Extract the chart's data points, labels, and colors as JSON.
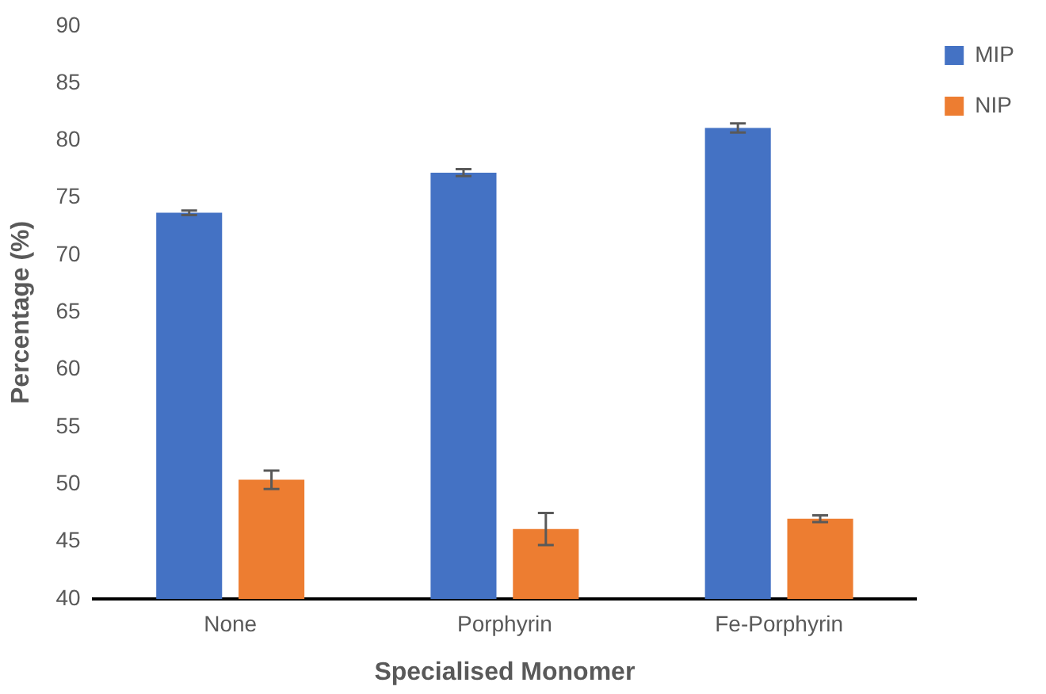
{
  "chart_data": {
    "type": "bar",
    "xlabel": "Specialised Monomer",
    "ylabel": "Percentage (%)",
    "categories": [
      "None",
      "Porphyrin",
      "Fe-Porphyrin"
    ],
    "series": [
      {
        "name": "MIP",
        "color": "#4472c4",
        "values": [
          73.7,
          77.2,
          81.1
        ],
        "errors": [
          0.2,
          0.3,
          0.4
        ]
      },
      {
        "name": "NIP",
        "color": "#ed7d31",
        "values": [
          50.4,
          46.1,
          47.0
        ],
        "errors": [
          0.8,
          1.4,
          0.3
        ]
      }
    ],
    "ylim": [
      40,
      90
    ],
    "yticks": [
      40,
      45,
      50,
      55,
      60,
      65,
      70,
      75,
      80,
      85,
      90
    ],
    "grid": false,
    "legend": "top right"
  }
}
